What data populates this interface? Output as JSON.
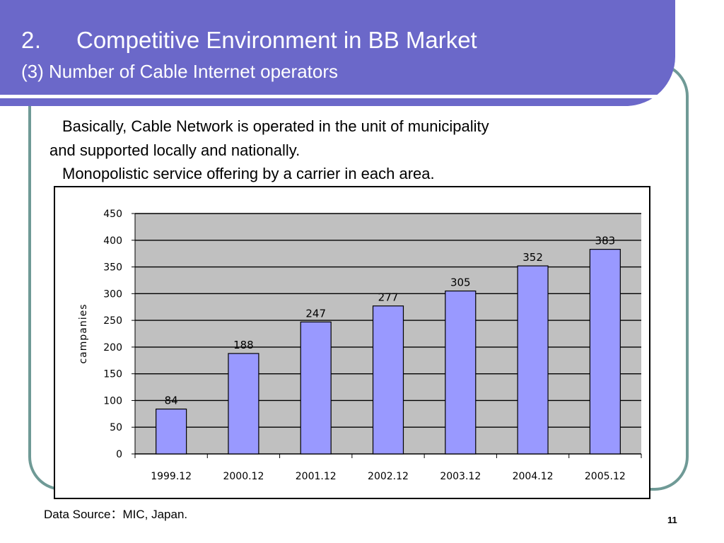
{
  "slide": {
    "title_number": "2.",
    "title": "Competitive Environment in BB Market",
    "subtitle": "(3) Number of Cable Internet operators",
    "body_lines": [
      "Basically, Cable Network is operated in the unit of municipality",
      "and supported locally and nationally.",
      "Monopolistic service offering by a carrier in each area."
    ],
    "source": "Data Source：MIC, Japan.",
    "page_number": "11"
  },
  "colors": {
    "banner": "#6b68c9",
    "frame": "#6f9a96",
    "plot_background": "#c0c0c0",
    "bar_fill": "#9999ff"
  },
  "chart_data": {
    "type": "bar",
    "categories": [
      "1999.12",
      "2000.12",
      "2001.12",
      "2002.12",
      "2003.12",
      "2004.12",
      "2005.12"
    ],
    "values": [
      84,
      188,
      247,
      277,
      305,
      352,
      383
    ],
    "title": "",
    "xlabel": "",
    "ylabel": "campanies",
    "ylim": [
      0,
      450
    ],
    "yticks": [
      0,
      50,
      100,
      150,
      200,
      250,
      300,
      350,
      400,
      450
    ],
    "grid": true,
    "legend": "none"
  }
}
